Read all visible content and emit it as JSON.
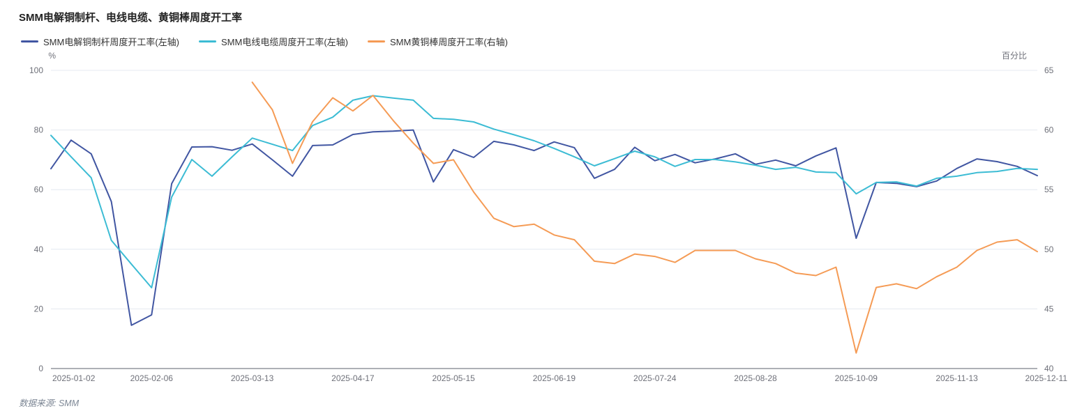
{
  "title": "SMM电解铜制杆、电线电缆、黄铜棒周度开工率",
  "footer": "数据来源: SMM",
  "colors": {
    "copper_rod": "#4156a2",
    "wire_cable": "#3cbcd4",
    "brass_rod": "#f59b55",
    "axis_text": "#6e7079",
    "grid_line": "#e4e8f0",
    "axis_line": "#5b606c",
    "title_text": "#222222",
    "footer_text": "#7d8795"
  },
  "chart_data": {
    "type": "line",
    "title": "SMM电解铜制杆、电线电缆、黄铜棒周度开工率",
    "legend_position": "top-left",
    "grid": true,
    "point_count": 50,
    "left_axis": {
      "name": "%",
      "min": 0,
      "max": 100,
      "ticks": [
        0,
        20,
        40,
        60,
        80,
        100
      ]
    },
    "right_axis": {
      "name": "百分比",
      "min": 40,
      "max": 65,
      "ticks": [
        40,
        45,
        50,
        55,
        60,
        65
      ]
    },
    "x_labels": [
      "2025-01-02",
      "2025-02-06",
      "2025-03-13",
      "2025-04-17",
      "2025-05-15",
      "2025-06-19",
      "2025-07-24",
      "2025-08-28",
      "2025-10-09",
      "2025-11-13",
      "2025-12-11"
    ],
    "x_label_indices": [
      0,
      5,
      10,
      15,
      20,
      25,
      30,
      35,
      40,
      45,
      49
    ],
    "series": [
      {
        "name": "SMM电解铜制杆周度开工率(左轴)",
        "axis": "left",
        "color": "#4156a2",
        "values": [
          67,
          76.6,
          72,
          56,
          14.5,
          18,
          62,
          74.3,
          74.4,
          73.2,
          75.3,
          70,
          64.5,
          74.8,
          75,
          78.5,
          79.4,
          79.6,
          80,
          62.6,
          73.4,
          70.8,
          76.2,
          75,
          73.1,
          76,
          74.1,
          63.8,
          66.8,
          74.2,
          69.7,
          71.8,
          69,
          70.3,
          72,
          68.5,
          69.9,
          68,
          71.3,
          74,
          43.7,
          62.4,
          62.1,
          61,
          62.9,
          67.1,
          70.3,
          69.4,
          67.8,
          64.7
        ]
      },
      {
        "name": "SMM电线电缆周度开工率(左轴)",
        "axis": "left",
        "color": "#3cbcd4",
        "values": [
          78.2,
          71,
          64,
          43,
          35,
          27.1,
          57.5,
          70.1,
          64.5,
          71,
          77.3,
          75.2,
          73.1,
          81.5,
          84.3,
          90,
          91.5,
          90.7,
          90,
          83.9,
          83.6,
          82.7,
          80.3,
          78.4,
          76.4,
          73.8,
          71,
          68,
          70.4,
          72.9,
          71,
          67.8,
          70.1,
          70.1,
          69.3,
          68.2,
          66.8,
          67.5,
          65.9,
          65.7,
          58.6,
          62.4,
          62.6,
          61.2,
          63.8,
          64.5,
          65.7,
          66.1,
          67.1,
          66.8
        ]
      },
      {
        "name": "SMM黄铜棒周度开工率(右轴)",
        "axis": "right",
        "color": "#f59b55",
        "values": [
          null,
          null,
          null,
          null,
          null,
          null,
          null,
          null,
          null,
          null,
          64,
          61.7,
          57.2,
          60.7,
          62.7,
          61.6,
          62.9,
          60.8,
          58.9,
          57.2,
          57.5,
          54.8,
          52.6,
          51.9,
          52.1,
          51.2,
          50.8,
          49,
          48.8,
          49.6,
          49.4,
          48.9,
          49.9,
          49.9,
          49.9,
          49.2,
          48.8,
          48,
          47.8,
          48.5,
          41.3,
          46.8,
          47.1,
          46.7,
          47.7,
          48.5,
          49.9,
          50.6,
          50.8,
          49.8
        ]
      }
    ]
  }
}
